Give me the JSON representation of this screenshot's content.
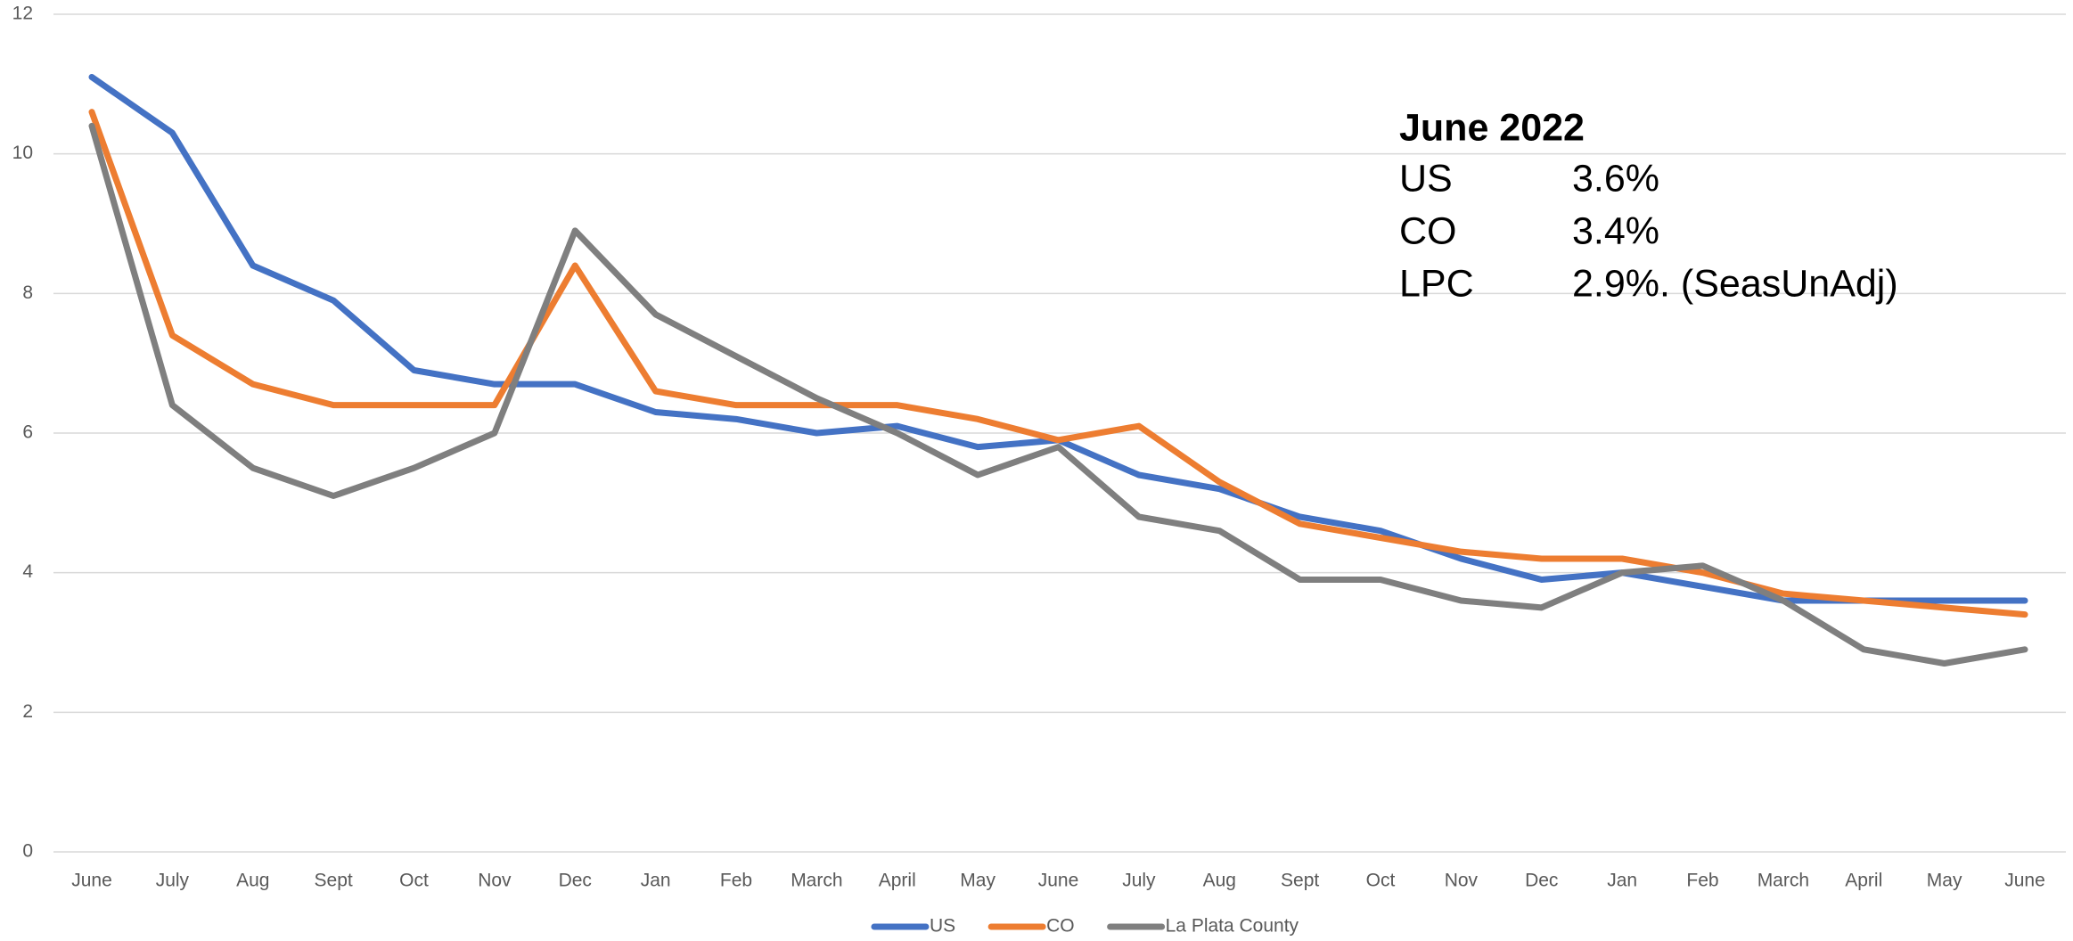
{
  "chart_data": {
    "type": "line",
    "categories": [
      "June",
      "July",
      "Aug",
      "Sept",
      "Oct",
      "Nov",
      "Dec",
      "Jan",
      "Feb",
      "March",
      "April",
      "May",
      "June",
      "July",
      "Aug",
      "Sept",
      "Oct",
      "Nov",
      "Dec",
      "Jan",
      "Feb",
      "March",
      "April",
      "May",
      "June"
    ],
    "series": [
      {
        "name": "US",
        "color": "#4472c4",
        "values": [
          11.1,
          10.3,
          8.4,
          7.9,
          6.9,
          6.7,
          6.7,
          6.3,
          6.2,
          6.0,
          6.1,
          5.8,
          5.9,
          5.4,
          5.2,
          4.8,
          4.6,
          4.2,
          3.9,
          4.0,
          3.8,
          3.6,
          3.6,
          3.6,
          3.6
        ]
      },
      {
        "name": "CO",
        "color": "#ed7d31",
        "values": [
          10.6,
          7.4,
          6.7,
          6.4,
          6.4,
          6.4,
          8.4,
          6.6,
          6.4,
          6.4,
          6.4,
          6.2,
          5.9,
          6.1,
          5.3,
          4.7,
          4.5,
          4.3,
          4.2,
          4.2,
          4.0,
          3.7,
          3.6,
          3.5,
          3.4
        ]
      },
      {
        "name": "La Plata County",
        "color": "#7f7f7f",
        "values": [
          10.4,
          6.4,
          5.5,
          5.1,
          5.5,
          6.0,
          8.9,
          7.7,
          7.1,
          6.5,
          6.0,
          5.4,
          5.8,
          4.8,
          4.6,
          3.9,
          3.9,
          3.6,
          3.5,
          4.0,
          4.1,
          3.6,
          2.9,
          2.7,
          2.9
        ]
      }
    ],
    "ylim": [
      0,
      12
    ],
    "yticks": [
      0,
      2,
      4,
      6,
      8,
      10,
      12
    ],
    "grid": true,
    "legend": "bottom",
    "annotation": {
      "title": "June 2022",
      "rows": [
        [
          "US",
          "3.6%"
        ],
        [
          "CO",
          "3.4%"
        ],
        [
          "LPC",
          "2.9%. (SeasUnAdj)"
        ]
      ]
    }
  }
}
